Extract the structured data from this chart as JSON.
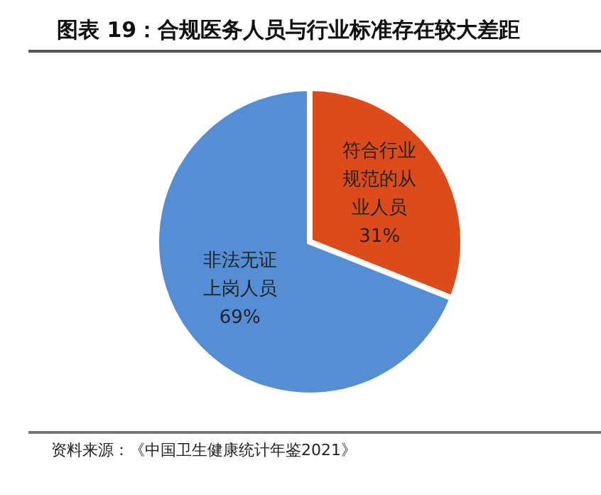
{
  "chart_data": {
    "type": "pie",
    "title": "图表 19：合规医务人员与行业标准存在较大差距",
    "categories": [
      "符合行业规范的从业人员",
      "非法无证上岗人员"
    ],
    "values": [
      31,
      69
    ],
    "value_labels": [
      "31%",
      "69%"
    ],
    "colors": [
      "#dd4b1a",
      "#558ed5"
    ],
    "annotations": [
      "资料来源：《中国卫生健康统计年鉴2021》"
    ]
  }
}
